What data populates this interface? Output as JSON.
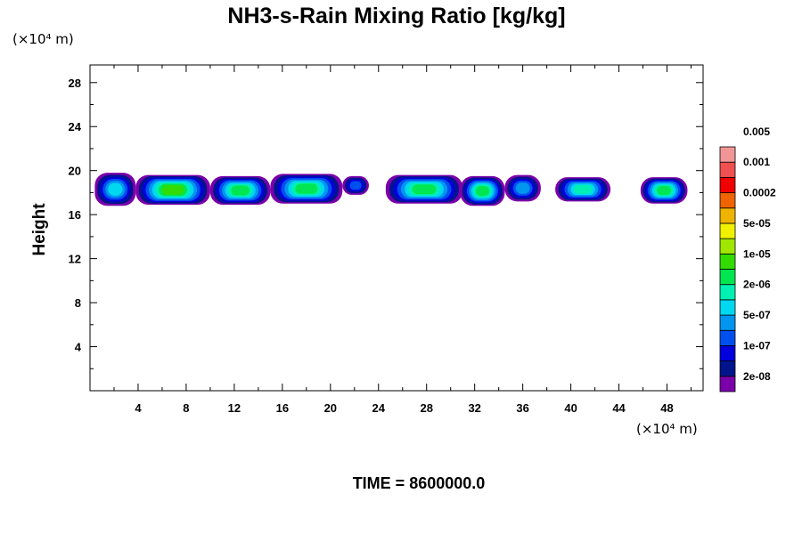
{
  "chart_data": {
    "type": "heatmap",
    "title": "NH3-s-Rain Mixing Ratio [kg/kg]",
    "ylabel": "Height",
    "x_unit": "(×10⁴ m)",
    "y_unit": "(×10⁴ m)",
    "xlim": [
      0,
      51
    ],
    "ylim": [
      0,
      29.6
    ],
    "x_ticks": [
      4,
      8,
      12,
      16,
      20,
      24,
      28,
      32,
      36,
      40,
      44,
      48
    ],
    "y_ticks": [
      4,
      8,
      12,
      16,
      20,
      24,
      28
    ],
    "x_tick_labels": [
      "4",
      "8",
      "12",
      "16",
      "20",
      "24",
      "28",
      "32",
      "36",
      "40",
      "44",
      "48"
    ],
    "y_tick_labels": [
      "4",
      "8",
      "12",
      "16",
      "20",
      "24",
      "28"
    ],
    "colorbar": {
      "colors": [
        "#7a00aa",
        "#00148c",
        "#0000dc",
        "#0050f0",
        "#0096f0",
        "#00d7f0",
        "#00f0b4",
        "#00e650",
        "#32dc00",
        "#a0e600",
        "#f0f000",
        "#f0b400",
        "#f06400",
        "#f00000",
        "#f05050",
        "#f09696"
      ],
      "labels": [
        "2e-08",
        "1e-07",
        "5e-07",
        "2e-06",
        "1e-05",
        "5e-05",
        "0.0002",
        "0.001",
        "0.005"
      ]
    },
    "cloud_cells": [
      {
        "x0": 0.4,
        "x1": 3.8,
        "y0": 16.8,
        "y1": 19.8,
        "core": 5
      },
      {
        "x0": 3.8,
        "x1": 10.0,
        "y0": 16.9,
        "y1": 19.6,
        "core": 8
      },
      {
        "x0": 10.0,
        "x1": 15.0,
        "y0": 16.9,
        "y1": 19.5,
        "core": 7
      },
      {
        "x0": 15.0,
        "x1": 21.0,
        "y0": 17.0,
        "y1": 19.7,
        "core": 7
      },
      {
        "x0": 21.0,
        "x1": 23.2,
        "y0": 17.8,
        "y1": 19.5,
        "core": 3
      },
      {
        "x0": 24.6,
        "x1": 31.0,
        "y0": 17.0,
        "y1": 19.6,
        "core": 7
      },
      {
        "x0": 30.8,
        "x1": 34.5,
        "y0": 16.8,
        "y1": 19.5,
        "core": 7
      },
      {
        "x0": 34.5,
        "x1": 37.5,
        "y0": 17.2,
        "y1": 19.6,
        "core": 4
      },
      {
        "x0": 38.7,
        "x1": 43.3,
        "y0": 17.2,
        "y1": 19.4,
        "core": 6
      },
      {
        "x0": 45.8,
        "x1": 49.7,
        "y0": 17.0,
        "y1": 19.4,
        "core": 7
      }
    ],
    "time_label": "TIME =  8600000.0"
  }
}
